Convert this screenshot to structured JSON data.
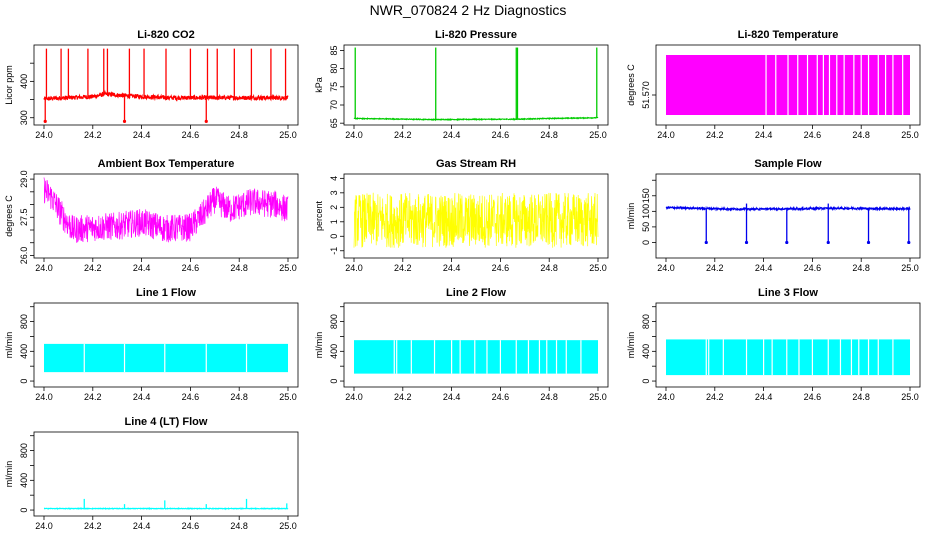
{
  "figure_title": "NWR_070824  2 Hz Diagnostics",
  "chart_data": [
    {
      "type": "line",
      "title": "Li-820 CO2",
      "ylabel": "Licor ppm",
      "color": "#ff0000",
      "xlim": [
        24.0,
        25.0
      ],
      "ylim": [
        280,
        500
      ],
      "xticks": [
        "24.0",
        "24.2",
        "24.4",
        "24.6",
        "24.8",
        "25.0"
      ],
      "yticks": [
        "300",
        "350",
        "400",
        "450"
      ],
      "yticks_visible": [
        "300",
        "400"
      ],
      "series": [
        {
          "name": "CO2",
          "pattern": "noisy-level-with-spikes",
          "base": [
            [
              24.0,
              352
            ],
            [
              24.2,
              358
            ],
            [
              24.25,
              365
            ],
            [
              24.35,
              360
            ],
            [
              24.5,
              355
            ],
            [
              24.7,
              355
            ],
            [
              24.9,
              355
            ],
            [
              25.0,
              355
            ]
          ],
          "noise": 6,
          "spikes_up": [
            24.01,
            24.07,
            24.1,
            24.18,
            24.245,
            24.26,
            24.35,
            24.41,
            24.5,
            24.6,
            24.67,
            24.71,
            24.78,
            24.85,
            24.93,
            24.99
          ],
          "spike_up_value": 490,
          "spikes_down": [
            24.005,
            24.33,
            24.665
          ],
          "spike_down_value": 290
        }
      ]
    },
    {
      "type": "line",
      "title": "Li-820 Pressure",
      "ylabel": "kPa",
      "color": "#00cc00",
      "xlim": [
        24.0,
        25.0
      ],
      "ylim": [
        64.5,
        86.5
      ],
      "xticks": [
        "24.0",
        "24.2",
        "24.4",
        "24.6",
        "24.8",
        "25.0"
      ],
      "yticks": [
        "65",
        "70",
        "75",
        "80",
        "85"
      ],
      "yticks_visible": [
        "65",
        "70",
        "75",
        "80",
        "85"
      ],
      "series": [
        {
          "name": "Pressure",
          "pattern": "flat-with-spikes",
          "base": [
            [
              24.0,
              66.3
            ],
            [
              24.33,
              66.0
            ],
            [
              24.67,
              66.1
            ],
            [
              24.8,
              66.3
            ],
            [
              25.0,
              66.5
            ]
          ],
          "noise": 0.1,
          "spikes_up": [
            24.005,
            24.335,
            24.665,
            24.67,
            24.995
          ],
          "spike_up_value": 85.8
        }
      ]
    },
    {
      "type": "area",
      "title": "Li-820 Temperature",
      "ylabel": "degrees C",
      "color": "#ff00ff",
      "xlim": [
        24.0,
        25.0
      ],
      "ylim": [
        51.5685,
        51.5725
      ],
      "xticks": [
        "24.0",
        "24.2",
        "24.4",
        "24.6",
        "24.8",
        "25.0"
      ],
      "yticks": [
        "51.570",
        "51.575",
        "51.580",
        "51.585"
      ],
      "yticks_visible": [
        "51.570",
        "51.585"
      ],
      "series": [
        {
          "name": "Temperature",
          "pattern": "quantized-toggle",
          "low": 51.569,
          "high": 51.572,
          "gaps": [
            24.41,
            24.45,
            24.5,
            24.54,
            24.58,
            24.62,
            24.645,
            24.67,
            24.7,
            24.73,
            24.77,
            24.8,
            24.83,
            24.87,
            24.9,
            24.93,
            24.97
          ]
        }
      ]
    },
    {
      "type": "line",
      "title": "Ambient Box Temperature",
      "ylabel": "degrees C",
      "color": "#ff00ff",
      "xlim": [
        24.0,
        25.0
      ],
      "ylim": [
        25.9,
        29.2
      ],
      "xticks": [
        "24.0",
        "24.2",
        "24.4",
        "24.6",
        "24.8",
        "25.0"
      ],
      "yticks": [
        "26.0",
        "26.5",
        "27.0",
        "27.5",
        "28.0",
        "28.5",
        "29.0"
      ],
      "yticks_visible": [
        "26.0",
        "27.5",
        "29.0"
      ],
      "series": [
        {
          "name": "Ambient",
          "pattern": "noisy-curve",
          "base": [
            [
              24.0,
              28.6
            ],
            [
              24.03,
              28.3
            ],
            [
              24.08,
              27.5
            ],
            [
              24.12,
              27.0
            ],
            [
              24.2,
              27.1
            ],
            [
              24.3,
              27.15
            ],
            [
              24.4,
              27.3
            ],
            [
              24.5,
              27.05
            ],
            [
              24.6,
              27.1
            ],
            [
              24.65,
              27.6
            ],
            [
              24.7,
              28.2
            ],
            [
              24.76,
              27.8
            ],
            [
              24.85,
              28.1
            ],
            [
              24.95,
              28.0
            ],
            [
              25.0,
              27.8
            ]
          ],
          "noise": 0.55
        }
      ]
    },
    {
      "type": "line",
      "title": "Gas Stream RH",
      "ylabel": "percent",
      "color": "#ffff00",
      "xlim": [
        24.0,
        25.0
      ],
      "ylim": [
        -1.5,
        4.3
      ],
      "xticks": [
        "24.0",
        "24.2",
        "24.4",
        "24.6",
        "24.8",
        "25.0"
      ],
      "yticks": [
        "-1",
        "0",
        "1",
        "2",
        "3",
        "4"
      ],
      "yticks_visible": [
        "-1",
        "0",
        "1",
        "2",
        "3",
        "4"
      ],
      "series": [
        {
          "name": "RH",
          "pattern": "noise-band",
          "base": [
            [
              24.0,
              1.1
            ],
            [
              25.0,
              1.1
            ]
          ],
          "noise": 1.9
        }
      ]
    },
    {
      "type": "line",
      "title": "Sample Flow",
      "ylabel": "ml/min",
      "color": "#0000ee",
      "xlim": [
        24.0,
        25.0
      ],
      "ylim": [
        -50,
        220
      ],
      "xticks": [
        "24.0",
        "24.2",
        "24.4",
        "24.6",
        "24.8",
        "25.0"
      ],
      "yticks": [
        "0",
        "50",
        "100",
        "150",
        "200"
      ],
      "yticks_visible": [
        "0",
        "50",
        "100",
        "150"
      ],
      "series": [
        {
          "name": "Sample",
          "pattern": "flat-with-dropouts",
          "base": [
            [
              24.0,
              112
            ],
            [
              24.3,
              107
            ],
            [
              24.5,
              108
            ],
            [
              24.7,
              110
            ],
            [
              25.0,
              108
            ]
          ],
          "noise": 3,
          "spikes_down": [
            24.165,
            24.33,
            24.495,
            24.665,
            24.83,
            24.995
          ],
          "spike_down_value": 0,
          "spikes_up": [
            24.33,
            24.665
          ],
          "spike_up_value": 125
        }
      ]
    },
    {
      "type": "area",
      "title": "Line 1 Flow",
      "ylabel": "ml/min",
      "color": "#00ffff",
      "xlim": [
        24.0,
        25.0
      ],
      "ylim": [
        -80,
        1050
      ],
      "xticks": [
        "24.0",
        "24.2",
        "24.4",
        "24.6",
        "24.8",
        "25.0"
      ],
      "yticks": [
        "0",
        "200",
        "400",
        "600",
        "800",
        "1000"
      ],
      "yticks_visible": [
        "0",
        "400",
        "800"
      ],
      "series": [
        {
          "name": "Line 1",
          "pattern": "band-with-gaps",
          "low": 120,
          "high": 500,
          "gaps": [
            24.165,
            24.33,
            24.495,
            24.665,
            24.83
          ]
        }
      ]
    },
    {
      "type": "area",
      "title": "Line 2 Flow",
      "ylabel": "ml/min",
      "color": "#00ffff",
      "xlim": [
        24.0,
        25.0
      ],
      "ylim": [
        -80,
        1050
      ],
      "xticks": [
        "24.0",
        "24.2",
        "24.4",
        "24.6",
        "24.8",
        "25.0"
      ],
      "yticks": [
        "0",
        "200",
        "400",
        "600",
        "800",
        "1000"
      ],
      "yticks_visible": [
        "0",
        "400",
        "800"
      ],
      "series": [
        {
          "name": "Line 2",
          "pattern": "band-with-gaps",
          "low": 100,
          "high": 550,
          "gaps": [
            24.165,
            24.175,
            24.235,
            24.33,
            24.4,
            24.435,
            24.495,
            24.545,
            24.6,
            24.665,
            24.715,
            24.76,
            24.79,
            24.83,
            24.87,
            24.93
          ]
        }
      ]
    },
    {
      "type": "area",
      "title": "Line 3 Flow",
      "ylabel": "ml/min",
      "color": "#00ffff",
      "xlim": [
        24.0,
        25.0
      ],
      "ylim": [
        -80,
        1050
      ],
      "xticks": [
        "24.0",
        "24.2",
        "24.4",
        "24.6",
        "24.8",
        "25.0"
      ],
      "yticks": [
        "0",
        "200",
        "400",
        "600",
        "800",
        "1000"
      ],
      "yticks_visible": [
        "0",
        "400",
        "800"
      ],
      "series": [
        {
          "name": "Line 3",
          "pattern": "band-with-gaps",
          "low": 80,
          "high": 560,
          "gaps": [
            24.165,
            24.175,
            24.235,
            24.33,
            24.4,
            24.435,
            24.495,
            24.545,
            24.6,
            24.665,
            24.715,
            24.76,
            24.79,
            24.83,
            24.87,
            24.93
          ]
        }
      ]
    },
    {
      "type": "line",
      "title": "Line 4 (LT) Flow",
      "ylabel": "ml/min",
      "color": "#00ffff",
      "xlim": [
        24.0,
        25.0
      ],
      "ylim": [
        -80,
        1050
      ],
      "xticks": [
        "24.0",
        "24.2",
        "24.4",
        "24.6",
        "24.8",
        "25.0"
      ],
      "yticks": [
        "0",
        "200",
        "400",
        "600",
        "800",
        "1000"
      ],
      "yticks_visible": [
        "0",
        "400",
        "800"
      ],
      "series": [
        {
          "name": "Line 4",
          "pattern": "flat-with-spikes",
          "base": [
            [
              24.0,
              20
            ],
            [
              25.0,
              20
            ]
          ],
          "noise": 4,
          "spikes_up": [
            24.165,
            24.33,
            24.495,
            24.665,
            24.83,
            24.995
          ],
          "spike_heights": [
            150,
            80,
            130,
            80,
            150,
            90
          ]
        }
      ]
    }
  ]
}
